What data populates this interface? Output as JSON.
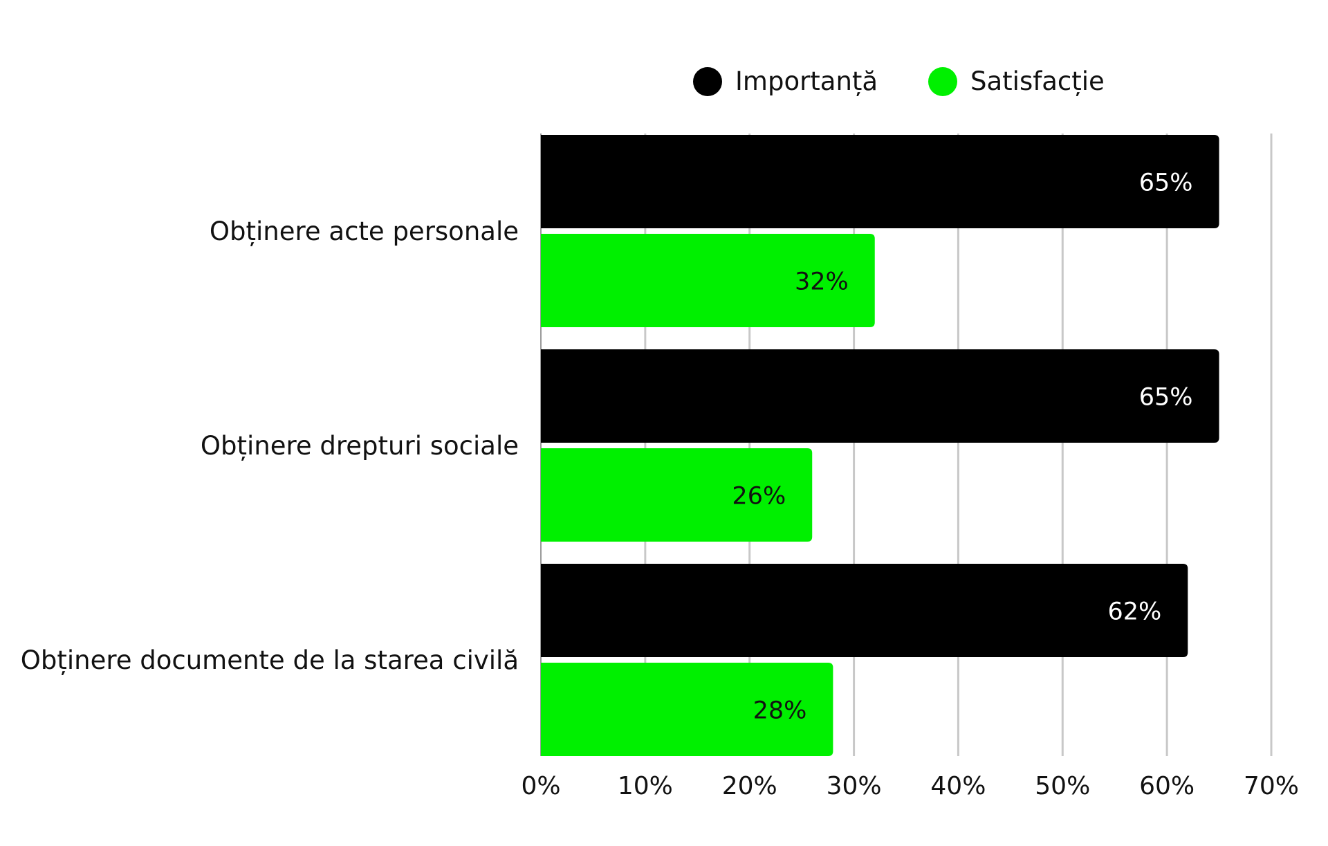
{
  "chart_data": {
    "type": "bar",
    "orientation": "horizontal",
    "title": "",
    "xlabel": "",
    "ylabel": "",
    "categories": [
      "Obținere acte personale",
      "Obținere drepturi sociale",
      "Obținere documente de la starea civilă"
    ],
    "series": [
      {
        "name": "Importanță",
        "color": "#000000",
        "label_color": "#ffffff",
        "values": [
          65,
          65,
          62
        ],
        "labels": [
          "65%",
          "65%",
          "62%"
        ]
      },
      {
        "name": "Satisfacție",
        "color": "#00f000",
        "label_color": "#111111",
        "values": [
          32,
          26,
          28
        ],
        "labels": [
          "32%",
          "26%",
          "28%"
        ]
      }
    ],
    "xlim": [
      0,
      70
    ],
    "x_ticks": [
      0,
      10,
      20,
      30,
      40,
      50,
      60,
      70
    ],
    "x_tick_labels": [
      "0%",
      "10%",
      "20%",
      "30%",
      "40%",
      "50%",
      "60%",
      "70%"
    ],
    "grid": "vertical",
    "legend_position": "top"
  }
}
